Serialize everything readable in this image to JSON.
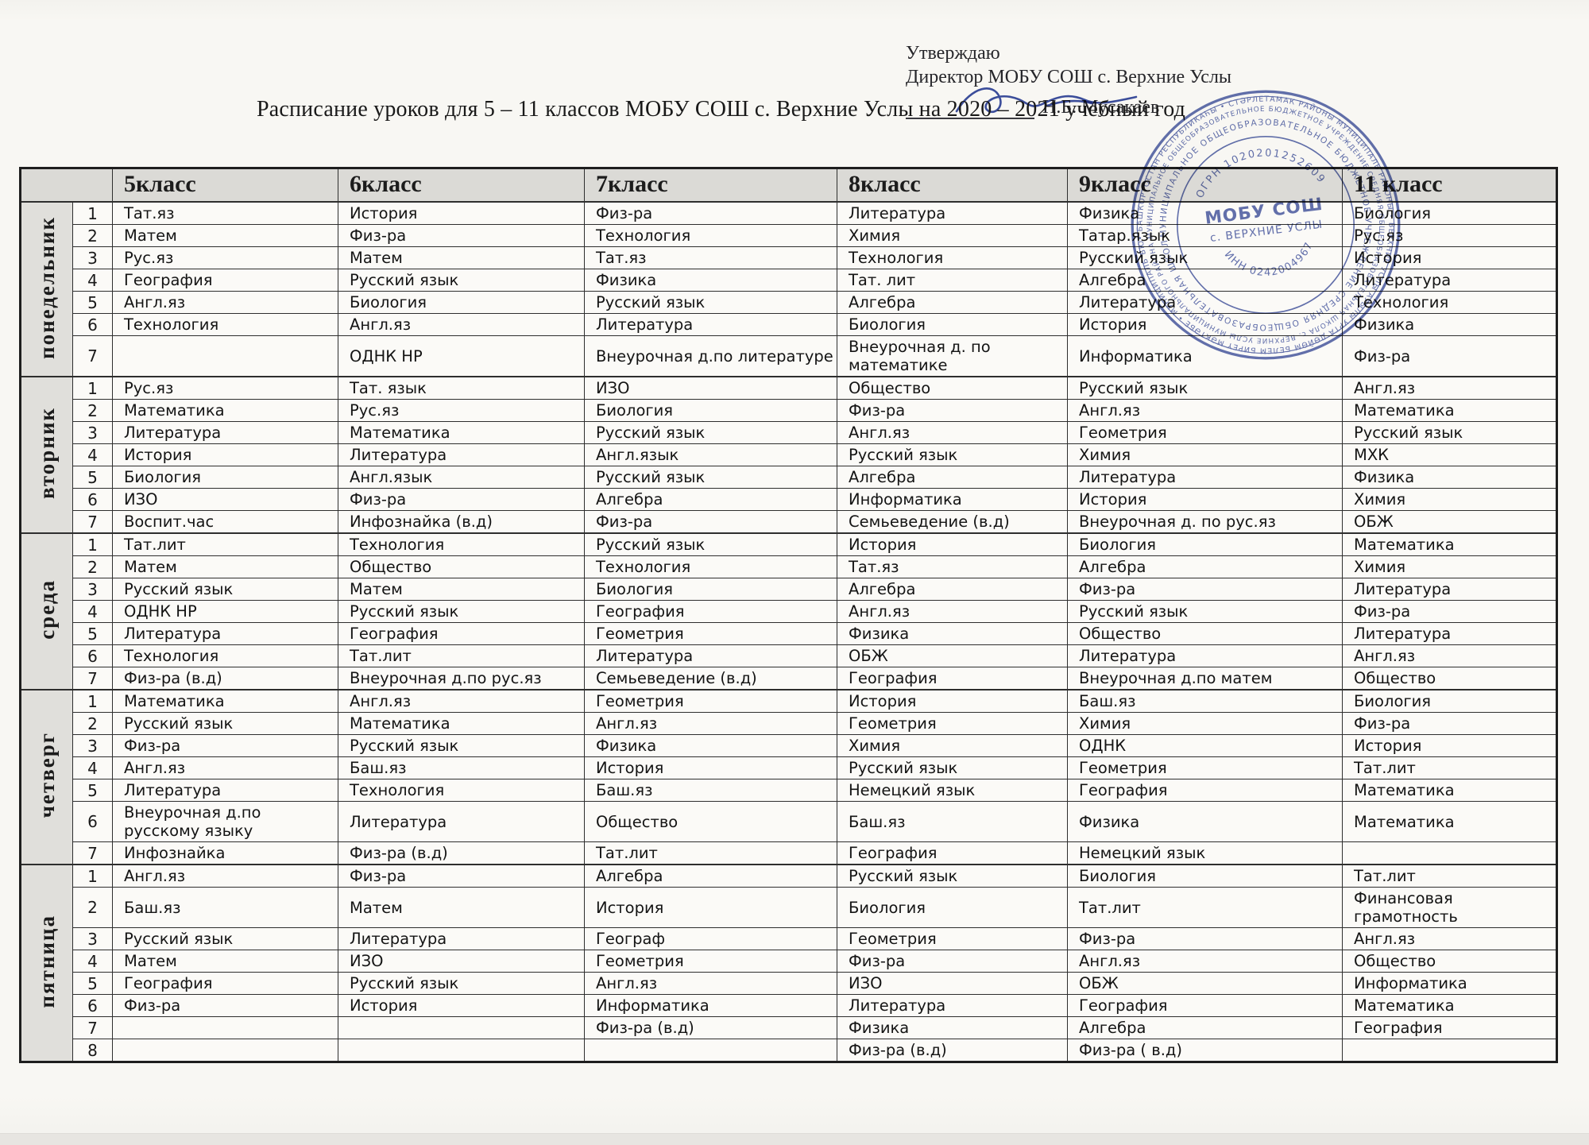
{
  "approval": {
    "line1": "Утверждаю",
    "line2": "Директор МОБУ СОШ с. Верхние Услы",
    "signer": "Н.Б. Мусакаев"
  },
  "title": "Расписание уроков для 5 – 11 классов МОБУ СОШ с. Верхние Услы на 2020 – 2021 учебный  год",
  "columns": [
    "5класс",
    "6класс",
    "7класс",
    "8класс",
    "9класс",
    "11 класс"
  ],
  "days": [
    {
      "name": "понедельник",
      "rows": [
        {
          "num": "1",
          "cells": [
            "Тат.яз",
            "История",
            "Физ-ра",
            "Литература",
            "Физика",
            "Биология"
          ]
        },
        {
          "num": "2",
          "cells": [
            "Матем",
            "Физ-ра",
            "Технология",
            "Химия",
            "Татар.язык",
            "Рус.яз"
          ]
        },
        {
          "num": "3",
          "cells": [
            "Рус.яз",
            "Матем",
            "Тат.яз",
            "Технология",
            "Русский язык",
            "История"
          ]
        },
        {
          "num": "4",
          "cells": [
            "География",
            "Русский язык",
            "Физика",
            "Тат.  лит",
            "Алгебра",
            "Литература"
          ]
        },
        {
          "num": "5",
          "cells": [
            "Англ.яз",
            "Биология",
            "Русский язык",
            "Алгебра",
            "Литература",
            "Технология"
          ]
        },
        {
          "num": "6",
          "cells": [
            "Технология",
            "Англ.яз",
            "Литература",
            "Биология",
            "История",
            "Физика"
          ]
        },
        {
          "num": "7",
          "cells": [
            "",
            "ОДНК НР",
            "Внеурочная д.по литературе",
            "Внеурочная д.  по\nматематике",
            "Информатика",
            "Физ-ра"
          ]
        }
      ]
    },
    {
      "name": "вторник",
      "rows": [
        {
          "num": "1",
          "cells": [
            "Рус.яз",
            "Тат.  язык",
            "ИЗО",
            "Общество",
            "Русский язык",
            "Англ.яз"
          ]
        },
        {
          "num": "2",
          "cells": [
            "Математика",
            "Рус.яз",
            "Биология",
            "Физ-ра",
            "Англ.яз",
            "Математика"
          ]
        },
        {
          "num": "3",
          "cells": [
            "Литература",
            "Математика",
            "Русский язык",
            "Англ.яз",
            "Геометрия",
            "Русский язык"
          ]
        },
        {
          "num": "4",
          "cells": [
            "История",
            "Литература",
            "Англ.язык",
            "Русский язык",
            "Химия",
            "МХК"
          ]
        },
        {
          "num": "5",
          "cells": [
            "Биология",
            "Англ.язык",
            "Русский язык",
            "Алгебра",
            "Литература",
            "Физика"
          ]
        },
        {
          "num": "6",
          "cells": [
            "ИЗО",
            "Физ-ра",
            "Алгебра",
            "Информатика",
            "История",
            "Химия"
          ]
        },
        {
          "num": "7",
          "cells": [
            "Воспит.час",
            "Инфознайка (в.д)",
            "Физ-ра",
            "Семьеведение (в.д)",
            "Внеурочная д.  по рус.яз",
            "ОБЖ"
          ]
        }
      ]
    },
    {
      "name": "среда",
      "rows": [
        {
          "num": "1",
          "cells": [
            "Тат.лит",
            "Технология",
            "Русский язык",
            "История",
            "Биология",
            "Математика"
          ]
        },
        {
          "num": "2",
          "cells": [
            "Матем",
            "Общество",
            "Технология",
            "Тат.яз",
            "Алгебра",
            "Химия"
          ]
        },
        {
          "num": "3",
          "cells": [
            "Русский язык",
            "Матем",
            "Биология",
            "Алгебра",
            "Физ-ра",
            "Литература"
          ]
        },
        {
          "num": "4",
          "cells": [
            "ОДНК НР",
            "Русский язык",
            "География",
            "Англ.яз",
            "Русский язык",
            "Физ-ра"
          ]
        },
        {
          "num": "5",
          "cells": [
            "Литература",
            "География",
            "Геометрия",
            "Физика",
            "Общество",
            "Литература"
          ]
        },
        {
          "num": "6",
          "cells": [
            "Технология",
            "Тат.лит",
            "Литература",
            "ОБЖ",
            "Литература",
            "Англ.яз"
          ]
        },
        {
          "num": "7",
          "cells": [
            "Физ-ра (в.д)",
            "Внеурочная д.по  рус.яз",
            "Семьеведение (в.д)",
            "География",
            "Внеурочная д.по матем",
            "Общество"
          ]
        }
      ]
    },
    {
      "name": "четверг",
      "rows": [
        {
          "num": "1",
          "cells": [
            "Математика",
            "Англ.яз",
            "Геометрия",
            "История",
            "Баш.яз",
            "Биология"
          ]
        },
        {
          "num": "2",
          "cells": [
            "Русский язык",
            "Математика",
            "Англ.яз",
            "Геометрия",
            "Химия",
            "Физ-ра"
          ]
        },
        {
          "num": "3",
          "cells": [
            "Физ-ра",
            "Русский язык",
            "Физика",
            "Химия",
            "ОДНК",
            "История"
          ]
        },
        {
          "num": "4",
          "cells": [
            "Англ.яз",
            "Баш.яз",
            "История",
            "Русский язык",
            "Геометрия",
            "Тат.лит"
          ]
        },
        {
          "num": "5",
          "cells": [
            "Литература",
            "Технология",
            "Баш.яз",
            "Немецкий язык",
            "География",
            "Математика"
          ]
        },
        {
          "num": "6",
          "cells": [
            "Внеурочная д.по\nрусскому языку",
            "Литература",
            "Общество",
            "Баш.яз",
            "Физика",
            "Математика"
          ]
        },
        {
          "num": "7",
          "cells": [
            "Инфознайка",
            "Физ-ра (в.д)",
            "Тат.лит",
            "География",
            "Немецкий язык",
            ""
          ]
        }
      ]
    },
    {
      "name": "пятница",
      "rows": [
        {
          "num": "1",
          "cells": [
            "Англ.яз",
            "Физ-ра",
            "Алгебра",
            "Русский язык",
            "Биология",
            "Тат.лит"
          ]
        },
        {
          "num": "2",
          "cells": [
            "Баш.яз",
            "Матем",
            "История",
            "Биология",
            "Тат.лит",
            "Финансовая\nграмотность"
          ]
        },
        {
          "num": "3",
          "cells": [
            "Русский язык",
            "Литература",
            "Географ",
            "Геометрия",
            "Физ-ра",
            "Англ.яз"
          ]
        },
        {
          "num": "4",
          "cells": [
            "Матем",
            "ИЗО",
            "Геометрия",
            "Физ-ра",
            "Англ.яз",
            "Общество"
          ]
        },
        {
          "num": "5",
          "cells": [
            "География",
            "Русский язык",
            "Англ.яз",
            "ИЗО",
            "ОБЖ",
            "Информатика"
          ]
        },
        {
          "num": "6",
          "cells": [
            "Физ-ра",
            "История",
            "Информатика",
            "Литература",
            "География",
            "Математика"
          ]
        },
        {
          "num": "7",
          "cells": [
            "",
            "",
            "Физ-ра (в.д)",
            "Физика",
            "Алгебра",
            "География"
          ]
        },
        {
          "num": "8",
          "cells": [
            "",
            "",
            "",
            "Физ-ра (в.д)",
            "Физ-ра ( в.д)",
            ""
          ]
        }
      ]
    }
  ],
  "stamp": {
    "center_line1": "МОБУ СОШ",
    "center_line2": "с. ВЕРХНИЕ УСЛЫ",
    "ogrn": "ОГРН 1020201252609",
    "inn": "ИНН 0242004967",
    "ring_inner": "МУНИЦИПАЛЬНОЕ ОБЩЕОБРАЗОВАТЕЛЬНОЕ БЮДЖЕТНОЕ УЧРЕЖДЕНИЕ СРЕДНЯЯ ОБЩЕОБРАЗОВАТЕЛЬНАЯ ШКОЛА с. ВЕРХНИЕ УСЛЫ МУНИЦИПАЛЬНОГО РАЙОНА СТЕРЛИТАМАКСКИЙ РАЙОН РЕСПУБЛИКИ БАШКОРТОСТАН •",
    "ring_outer": "• БАШКОРТОСТАН РЕСПУБЛИКАҺЫ • СТӘРЛЕТАМАК РАЙОНЫ МУНИЦИПАЛЬ РАЙОНЫ • ВЕРХНИЕ УСЛЫ АУЫЛЫ УРТА ДӨЙӨМ БЕЛЕМ БИРЕҮ МӘКТӘБЕ • МУНИЦИПАЛЬ БЮДЖЕТ УЧРЕЖДЕНИЕҺЫ •"
  },
  "colors": {
    "stamp_blue": "#40519f",
    "header_gray": "#dbdad6",
    "day_gray": "#e0dfdb",
    "paper": "#f8f7f3"
  }
}
